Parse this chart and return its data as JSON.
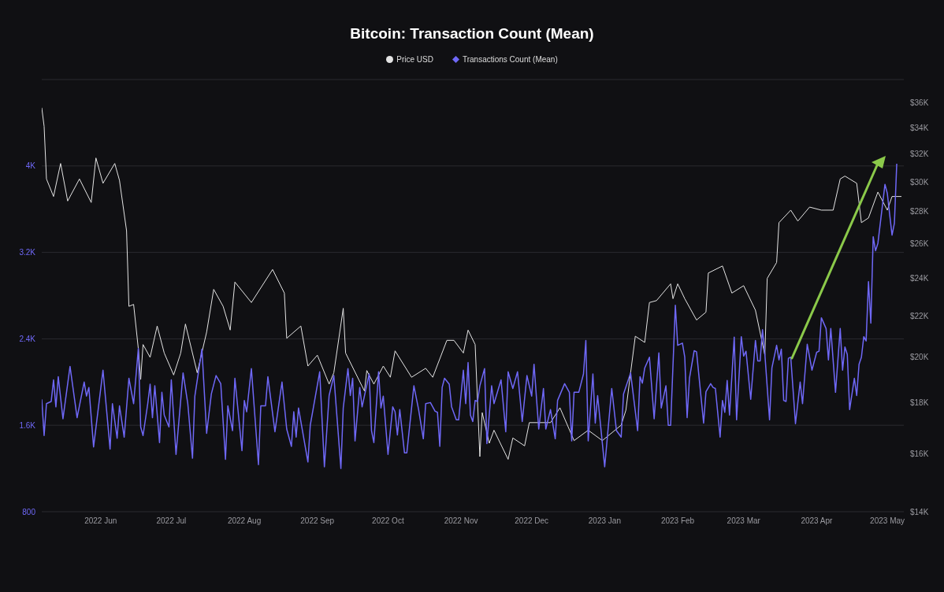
{
  "chart_data": {
    "type": "line",
    "title": "Bitcoin: Transaction Count (Mean)",
    "legend": "top",
    "grid": "y",
    "log": "y2",
    "xlim": [
      "2022-05-07",
      "2023-05-08"
    ],
    "xticks": [
      {
        "value": "2022-06-01",
        "label": "2022 Jun"
      },
      {
        "value": "2022-07-01",
        "label": "2022 Jul"
      },
      {
        "value": "2022-08-01",
        "label": "2022 Aug"
      },
      {
        "value": "2022-09-01",
        "label": "2022 Sep"
      },
      {
        "value": "2022-10-01",
        "label": "2022 Oct"
      },
      {
        "value": "2022-11-01",
        "label": "2022 Nov"
      },
      {
        "value": "2022-12-01",
        "label": "2022 Dec"
      },
      {
        "value": "2023-01-01",
        "label": "2023 Jan"
      },
      {
        "value": "2023-02-01",
        "label": "2023 Feb"
      },
      {
        "value": "2023-03-01",
        "label": "2023 Mar"
      },
      {
        "value": "2023-04-01",
        "label": "2023 Apr"
      },
      {
        "value": "2023-05-01",
        "label": "2023 May"
      }
    ],
    "ylim": [
      800,
      4800
    ],
    "yticks": [
      800,
      {
        "value": 1600,
        "label": "1.6K"
      },
      {
        "value": 2400,
        "label": "2.4K"
      },
      {
        "value": 3200,
        "label": "3.2K"
      },
      {
        "value": 4000,
        "label": "4K"
      },
      {
        "value": 4800,
        "label": null
      }
    ],
    "y2lim": [
      14000,
      38000
    ],
    "y2ticks": [
      {
        "value": 14000,
        "label": "$14K"
      },
      {
        "value": 16000,
        "label": "$16K"
      },
      {
        "value": 18000,
        "label": "$18K"
      },
      {
        "value": 20000,
        "label": "$20K"
      },
      {
        "value": 22000,
        "label": "$22K"
      },
      {
        "value": 24000,
        "label": "$24K"
      },
      {
        "value": 26000,
        "label": "$26K"
      },
      {
        "value": 28000,
        "label": "$28K"
      },
      {
        "value": 30000,
        "label": "$30K"
      },
      {
        "value": 32000,
        "label": "$32K"
      },
      {
        "value": 34000,
        "label": "$34K"
      },
      {
        "value": 36000,
        "label": "$36K"
      }
    ],
    "series": [
      {
        "name": "Price USD",
        "color": "#e4e4e4",
        "axis": "y2",
        "x": [
          "2022-05-07",
          "2022-05-08",
          "2022-05-09",
          "2022-05-12",
          "2022-05-15",
          "2022-05-18",
          "2022-05-23",
          "2022-05-28",
          "2022-05-30",
          "2022-06-02",
          "2022-06-07",
          "2022-06-09",
          "2022-06-12",
          "2022-06-13",
          "2022-06-15",
          "2022-06-17",
          "2022-06-18",
          "2022-06-19",
          "2022-06-22",
          "2022-06-25",
          "2022-06-28",
          "2022-07-02",
          "2022-07-05",
          "2022-07-07",
          "2022-07-12",
          "2022-07-16",
          "2022-07-19",
          "2022-07-23",
          "2022-07-26",
          "2022-07-28",
          "2022-08-04",
          "2022-08-13",
          "2022-08-18",
          "2022-08-19",
          "2022-08-25",
          "2022-08-28",
          "2022-09-01",
          "2022-09-06",
          "2022-09-08",
          "2022-09-12",
          "2022-09-13",
          "2022-09-21",
          "2022-09-22",
          "2022-09-25",
          "2022-09-29",
          "2022-10-02",
          "2022-10-04",
          "2022-10-11",
          "2022-10-17",
          "2022-10-20",
          "2022-10-26",
          "2022-10-29",
          "2022-11-02",
          "2022-11-04",
          "2022-11-07",
          "2022-11-09",
          "2022-11-10",
          "2022-11-13",
          "2022-11-15",
          "2022-11-21",
          "2022-11-23",
          "2022-11-28",
          "2022-11-30",
          "2022-12-09",
          "2022-12-13",
          "2022-12-19",
          "2022-12-25",
          "2022-12-31",
          "2023-01-08",
          "2023-01-10",
          "2023-01-12",
          "2023-01-14",
          "2023-01-18",
          "2023-01-20",
          "2023-01-23",
          "2023-01-29",
          "2023-01-30",
          "2023-02-01",
          "2023-02-04",
          "2023-02-09",
          "2023-02-13",
          "2023-02-14",
          "2023-02-20",
          "2023-02-24",
          "2023-03-01",
          "2023-03-06",
          "2023-03-10",
          "2023-03-11",
          "2023-03-15",
          "2023-03-16",
          "2023-03-21",
          "2023-03-24",
          "2023-03-29",
          "2023-04-03",
          "2023-04-08",
          "2023-04-11",
          "2023-04-13",
          "2023-04-18",
          "2023-04-20",
          "2023-04-23",
          "2023-04-27",
          "2023-05-01",
          "2023-05-03",
          "2023-05-07"
        ],
        "values": [
          35600,
          34100,
          30200,
          29000,
          31300,
          28700,
          30200,
          28600,
          31700,
          29900,
          31300,
          30100,
          26800,
          22500,
          22600,
          20400,
          19000,
          20600,
          20000,
          21500,
          20200,
          19200,
          20200,
          21600,
          19300,
          21200,
          23400,
          22500,
          21300,
          23800,
          22700,
          24500,
          23200,
          20900,
          21500,
          19600,
          20100,
          18800,
          19300,
          22400,
          20200,
          18500,
          19400,
          18800,
          19600,
          19100,
          20300,
          19100,
          19500,
          19100,
          20800,
          20800,
          20200,
          21300,
          20600,
          15900,
          17600,
          16400,
          16900,
          15800,
          16600,
          16300,
          17200,
          17200,
          17800,
          16500,
          16900,
          16500,
          17100,
          17700,
          19300,
          21000,
          20700,
          22700,
          22800,
          23700,
          22900,
          23700,
          22900,
          21800,
          22200,
          24300,
          24700,
          23200,
          23600,
          22300,
          20100,
          24000,
          24900,
          27300,
          28100,
          27400,
          28300,
          28100,
          28100,
          30200,
          30400,
          29900,
          27300,
          27600,
          29300,
          28100,
          29000,
          29000
        ]
      },
      {
        "name": "Transactions Count (Mean)",
        "color": "#6f68f7",
        "x": [
          "2022-05-07",
          "2022-05-08",
          "2022-05-09",
          "2022-05-11",
          "2022-05-12",
          "2022-05-13",
          "2022-05-14",
          "2022-05-16",
          "2022-05-19",
          "2022-05-22",
          "2022-05-25",
          "2022-05-26",
          "2022-05-27",
          "2022-05-29",
          "2022-06-02",
          "2022-06-05",
          "2022-06-06",
          "2022-06-08",
          "2022-06-09",
          "2022-06-11",
          "2022-06-13",
          "2022-06-15",
          "2022-06-17",
          "2022-06-18",
          "2022-06-19",
          "2022-06-21",
          "2022-06-22",
          "2022-06-23",
          "2022-06-24",
          "2022-06-26",
          "2022-06-27",
          "2022-06-28",
          "2022-06-30",
          "2022-07-01",
          "2022-07-03",
          "2022-07-06",
          "2022-07-08",
          "2022-07-10",
          "2022-07-11",
          "2022-07-14",
          "2022-07-16",
          "2022-07-18",
          "2022-07-20",
          "2022-07-22",
          "2022-07-24",
          "2022-07-25",
          "2022-07-27",
          "2022-07-28",
          "2022-07-31",
          "2022-08-01",
          "2022-08-02",
          "2022-08-04",
          "2022-08-07",
          "2022-08-08",
          "2022-08-10",
          "2022-08-11",
          "2022-08-14",
          "2022-08-17",
          "2022-08-19",
          "2022-08-21",
          "2022-08-22",
          "2022-08-23",
          "2022-08-24",
          "2022-08-28",
          "2022-08-29",
          "2022-09-02",
          "2022-09-04",
          "2022-09-06",
          "2022-09-08",
          "2022-09-11",
          "2022-09-12",
          "2022-09-14",
          "2022-09-15",
          "2022-09-16",
          "2022-09-17",
          "2022-09-19",
          "2022-09-20",
          "2022-09-23",
          "2022-09-24",
          "2022-09-25",
          "2022-09-27",
          "2022-09-28",
          "2022-09-29",
          "2022-10-01",
          "2022-10-03",
          "2022-10-04",
          "2022-10-05",
          "2022-10-06",
          "2022-10-08",
          "2022-10-09",
          "2022-10-12",
          "2022-10-14",
          "2022-10-16",
          "2022-10-17",
          "2022-10-19",
          "2022-10-21",
          "2022-10-22",
          "2022-10-23",
          "2022-10-24",
          "2022-10-25",
          "2022-10-27",
          "2022-10-28",
          "2022-10-30",
          "2022-10-31",
          "2022-11-02",
          "2022-11-03",
          "2022-11-04",
          "2022-11-05",
          "2022-11-06",
          "2022-11-07",
          "2022-11-08",
          "2022-11-09",
          "2022-11-11",
          "2022-11-12",
          "2022-11-14",
          "2022-11-15",
          "2022-11-18",
          "2022-11-20",
          "2022-11-21",
          "2022-11-23",
          "2022-11-25",
          "2022-11-27",
          "2022-11-29",
          "2022-12-01",
          "2022-12-02",
          "2022-12-04",
          "2022-12-06",
          "2022-12-07",
          "2022-12-09",
          "2022-12-11",
          "2022-12-12",
          "2022-12-15",
          "2022-12-17",
          "2022-12-18",
          "2022-12-19",
          "2022-12-21",
          "2022-12-23",
          "2022-12-24",
          "2022-12-25",
          "2022-12-27",
          "2022-12-28",
          "2022-12-29",
          "2023-01-01",
          "2023-01-04",
          "2023-01-06",
          "2023-01-08",
          "2023-01-09",
          "2023-01-12",
          "2023-01-15",
          "2023-01-16",
          "2023-01-17",
          "2023-01-18",
          "2023-01-20",
          "2023-01-22",
          "2023-01-24",
          "2023-01-25",
          "2023-01-27",
          "2023-01-28",
          "2023-01-29",
          "2023-01-31",
          "2023-02-01",
          "2023-02-03",
          "2023-02-04",
          "2023-02-05",
          "2023-02-06",
          "2023-02-08",
          "2023-02-09",
          "2023-02-12",
          "2023-02-13",
          "2023-02-15",
          "2023-02-16",
          "2023-02-17",
          "2023-02-19",
          "2023-02-20",
          "2023-02-21",
          "2023-02-22",
          "2023-02-23",
          "2023-02-25",
          "2023-02-26",
          "2023-02-28",
          "2023-03-01",
          "2023-03-02",
          "2023-03-04",
          "2023-03-06",
          "2023-03-07",
          "2023-03-08",
          "2023-03-09",
          "2023-03-10",
          "2023-03-12",
          "2023-03-13",
          "2023-03-15",
          "2023-03-16",
          "2023-03-17",
          "2023-03-18",
          "2023-03-19",
          "2023-03-20",
          "2023-03-21",
          "2023-03-23",
          "2023-03-25",
          "2023-03-26",
          "2023-03-28",
          "2023-03-30",
          "2023-04-01",
          "2023-04-02",
          "2023-04-03",
          "2023-04-05",
          "2023-04-06",
          "2023-04-07",
          "2023-04-09",
          "2023-04-11",
          "2023-04-12",
          "2023-04-13",
          "2023-04-14",
          "2023-04-15",
          "2023-04-17",
          "2023-04-18",
          "2023-04-19",
          "2023-04-20",
          "2023-04-21",
          "2023-04-22",
          "2023-04-23",
          "2023-04-24",
          "2023-04-25",
          "2023-04-26",
          "2023-04-27",
          "2023-04-30",
          "2023-05-01",
          "2023-05-02",
          "2023-05-03",
          "2023-05-04",
          "2023-05-05"
        ],
        "values": [
          1840,
          1505,
          1800,
          1820,
          2020,
          1770,
          2050,
          1660,
          2145,
          1670,
          2000,
          1870,
          1950,
          1400,
          2110,
          1380,
          1800,
          1480,
          1780,
          1490,
          2035,
          1800,
          2310,
          1585,
          1505,
          1800,
          1980,
          1670,
          1965,
          1440,
          1905,
          1695,
          1585,
          2020,
          1330,
          2085,
          1800,
          1295,
          1870,
          2305,
          1525,
          1890,
          2060,
          1985,
          1285,
          1780,
          1550,
          2035,
          1365,
          1830,
          1725,
          2125,
          1235,
          1780,
          1780,
          2050,
          1540,
          2000,
          1565,
          1405,
          1725,
          1490,
          1760,
          1260,
          1600,
          2095,
          1215,
          1875,
          2060,
          1200,
          1760,
          2125,
          1875,
          2035,
          1455,
          1950,
          1770,
          2075,
          1550,
          1440,
          2095,
          1760,
          1870,
          1330,
          1770,
          1725,
          1510,
          1745,
          1345,
          1345,
          1965,
          1745,
          1475,
          1800,
          1810,
          1730,
          1720,
          1405,
          1950,
          2035,
          1980,
          1770,
          1650,
          1650,
          2110,
          1800,
          2180,
          1695,
          1635,
          1830,
          1820,
          1965,
          2125,
          1430,
          1965,
          1800,
          2020,
          1540,
          2095,
          1940,
          2095,
          1635,
          2060,
          1870,
          2165,
          1565,
          1940,
          1565,
          1745,
          1475,
          1830,
          1985,
          1905,
          1455,
          1905,
          1905,
          2075,
          2385,
          1455,
          2075,
          1620,
          1875,
          1215,
          1940,
          1550,
          1490,
          1890,
          2085,
          1550,
          2050,
          1990,
          2130,
          2230,
          1660,
          2270,
          1760,
          1965,
          1600,
          1600,
          2710,
          2340,
          2360,
          2230,
          1670,
          2035,
          2290,
          2280,
          1620,
          1910,
          1985,
          1950,
          1940,
          1490,
          1830,
          1720,
          2015,
          1695,
          2415,
          1650,
          2420,
          2240,
          2285,
          1840,
          2385,
          2195,
          2195,
          2485,
          2260,
          1650,
          2130,
          2340,
          2205,
          2305,
          1830,
          1820,
          2220,
          2230,
          1615,
          2000,
          1800,
          2350,
          2110,
          2275,
          2285,
          2595,
          2495,
          2205,
          2495,
          1905,
          2495,
          2110,
          2325,
          2255,
          1745,
          2035,
          1875,
          2165,
          2230,
          2420,
          2380,
          2930,
          2545,
          3345,
          3215,
          3285,
          3830,
          3745,
          3550,
          3360,
          3470,
          4020
        ]
      }
    ]
  }
}
